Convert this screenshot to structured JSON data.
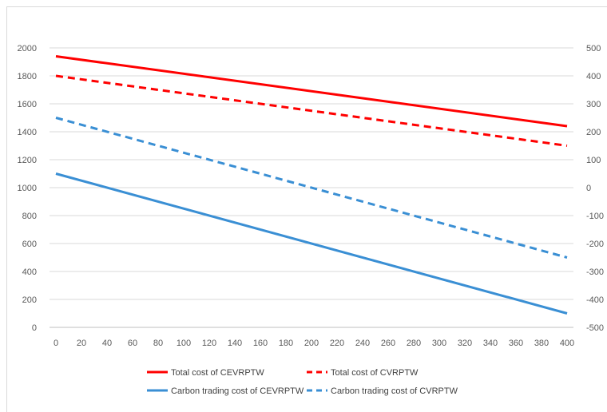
{
  "chart_data": {
    "type": "line",
    "title": "",
    "xlabel": "",
    "ylabel": "",
    "y2label": "",
    "x": [
      0,
      400
    ],
    "xticks": [
      0,
      20,
      40,
      60,
      80,
      100,
      120,
      140,
      160,
      180,
      200,
      220,
      240,
      260,
      280,
      300,
      320,
      340,
      360,
      380,
      400
    ],
    "xlim": [
      0,
      400
    ],
    "ylim": [
      0,
      2000
    ],
    "yticks": [
      0,
      200,
      400,
      600,
      800,
      1000,
      1200,
      1400,
      1600,
      1800,
      2000
    ],
    "y2lim": [
      -500,
      500
    ],
    "y2ticks": [
      -500,
      -400,
      -300,
      -200,
      -100,
      0,
      100,
      200,
      300,
      400,
      500
    ],
    "y2tick_labels": [
      "-500",
      "-400",
      "-300",
      "-200",
      "-100",
      "0",
      "100",
      "200",
      "300",
      "400",
      "500"
    ],
    "grid": true,
    "legend_position": "bottom",
    "series": [
      {
        "name": "Total cost of CEVRPTW",
        "axis": "left",
        "color": "#ff0000",
        "style": "solid",
        "values": [
          1940,
          1440
        ]
      },
      {
        "name": "Total cost of CVRPTW",
        "axis": "left",
        "color": "#ff0000",
        "style": "dashed",
        "values": [
          1800,
          1300
        ]
      },
      {
        "name": "Carbon trading cost of CEVRPTW",
        "axis": "right",
        "color": "#3a8fd4",
        "style": "solid",
        "values": [
          50,
          -450
        ]
      },
      {
        "name": "Carbon trading cost of CVRPTW",
        "axis": "right",
        "color": "#3a8fd4",
        "style": "dashed",
        "values": [
          250,
          -250
        ]
      }
    ]
  }
}
